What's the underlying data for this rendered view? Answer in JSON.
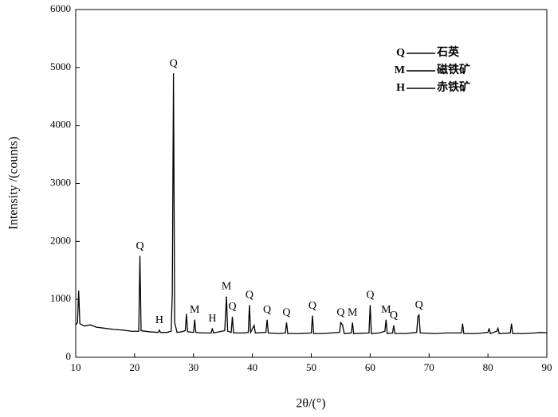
{
  "chart_data": {
    "type": "line",
    "x_label": "2θ/(°)",
    "y_label": "Intensity /(counts)",
    "color": "#000000",
    "x": [
      10,
      10.3,
      10.5,
      10.7,
      11.5,
      12.5,
      13.5,
      15,
      16.5,
      18,
      19.5,
      20.7,
      20.9,
      21.1,
      22.5,
      24,
      24.2,
      24.4,
      25.5,
      26.2,
      26.4,
      26.6,
      26.8,
      27.2,
      28,
      28.6,
      28.8,
      29,
      30,
      30.2,
      30.4,
      31.5,
      33,
      33.2,
      33.4,
      35.3,
      35.6,
      35.8,
      36.4,
      36.6,
      36.8,
      38.5,
      39.3,
      39.5,
      39.7,
      40.3,
      40.5,
      42.3,
      42.5,
      42.7,
      44.5,
      45.6,
      45.8,
      46,
      48,
      50,
      50.2,
      50.4,
      52,
      54.8,
      55,
      55.3,
      55.6,
      56.8,
      57,
      57.2,
      59.8,
      60,
      60.2,
      61.5,
      62.5,
      62.7,
      62.9,
      63.8,
      64,
      64.2,
      66,
      67.9,
      68.1,
      68.3,
      68.5,
      71,
      73,
      75.5,
      75.7,
      75.9,
      78,
      80,
      80.2,
      80.4,
      81.5,
      81.7,
      81.9,
      83.8,
      84,
      84.2,
      86,
      88,
      89,
      90
    ],
    "values": [
      560,
      600,
      1150,
      580,
      540,
      560,
      520,
      500,
      480,
      470,
      450,
      450,
      1750,
      460,
      440,
      430,
      470,
      430,
      430,
      450,
      1100,
      4900,
      600,
      430,
      440,
      460,
      750,
      440,
      430,
      650,
      430,
      420,
      420,
      500,
      420,
      460,
      1050,
      450,
      430,
      700,
      420,
      420,
      430,
      900,
      430,
      550,
      420,
      430,
      650,
      420,
      410,
      420,
      600,
      410,
      410,
      420,
      720,
      410,
      410,
      430,
      600,
      560,
      410,
      420,
      600,
      410,
      420,
      900,
      410,
      420,
      450,
      650,
      410,
      420,
      550,
      410,
      410,
      430,
      700,
      730,
      420,
      410,
      420,
      420,
      580,
      410,
      410,
      430,
      500,
      410,
      450,
      500,
      410,
      420,
      580,
      410,
      410,
      420,
      430,
      420
    ],
    "xlim": [
      10,
      90
    ],
    "ylim": [
      0,
      6000
    ],
    "xticks": [
      10,
      20,
      30,
      40,
      50,
      60,
      70,
      80,
      90
    ],
    "yticks": [
      0,
      1000,
      2000,
      3000,
      4000,
      5000,
      6000
    ],
    "annotations": [
      {
        "label": "Q",
        "x": 20.9
      },
      {
        "label": "H",
        "x": 24.2
      },
      {
        "label": "Q",
        "x": 26.6
      },
      {
        "label": "M",
        "x": 30.2
      },
      {
        "label": "H",
        "x": 33.2
      },
      {
        "label": "M",
        "x": 35.6
      },
      {
        "label": "Q",
        "x": 36.6
      },
      {
        "label": "Q",
        "x": 39.5
      },
      {
        "label": "Q",
        "x": 42.5
      },
      {
        "label": "Q",
        "x": 45.8
      },
      {
        "label": "Q",
        "x": 50.2
      },
      {
        "label": "Q",
        "x": 55
      },
      {
        "label": "M",
        "x": 57
      },
      {
        "label": "Q",
        "x": 60
      },
      {
        "label": "M",
        "x": 62.7
      },
      {
        "label": "Q",
        "x": 64
      },
      {
        "label": "Q",
        "x": 68.3
      }
    ],
    "legend": [
      {
        "symbol": "Q",
        "name": "石英"
      },
      {
        "symbol": "M",
        "name": "磁铁矿"
      },
      {
        "symbol": "H",
        "name": "赤铁矿"
      }
    ]
  }
}
